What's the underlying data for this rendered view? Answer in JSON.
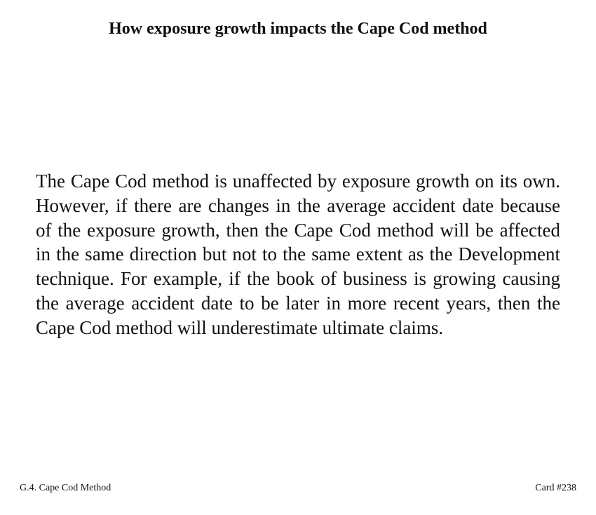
{
  "card": {
    "title": "How exposure growth impacts the Cape Cod method",
    "body": "The Cape Cod method is unaffected by exposure growth on its own. However, if there are changes in the average accident date because of the exposure growth, then the Cape Cod method will be affected in the same direction but not to the same extent as the Development technique.  For example, if the book of business is growing causing the average accident date to be later in more recent years, then the Cape Cod method will underestimate ultimate claims.",
    "section_label": "G.4. Cape Cod Method",
    "card_number": "Card #238"
  }
}
